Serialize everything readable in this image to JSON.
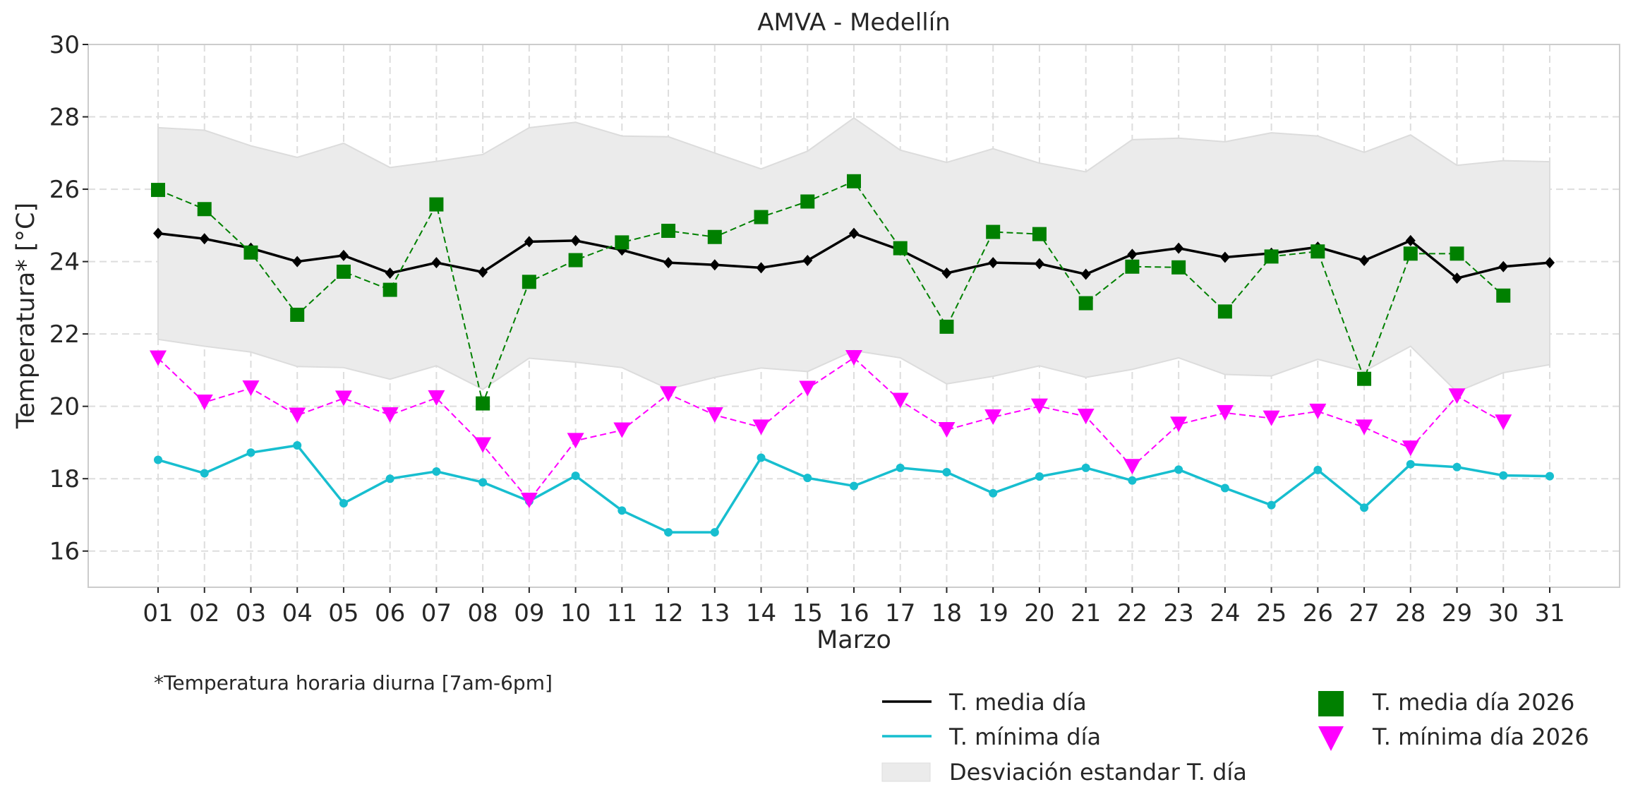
{
  "chart_data": {
    "type": "line",
    "title": "AMVA - Medellín",
    "xlabel": "Marzo",
    "ylabel": "Temperatura* [°C]",
    "ylim": [
      15,
      30
    ],
    "yticks": [
      16,
      18,
      20,
      22,
      24,
      26,
      28,
      30
    ],
    "grid": true,
    "categories": [
      "01",
      "02",
      "03",
      "04",
      "05",
      "06",
      "07",
      "08",
      "09",
      "10",
      "11",
      "12",
      "13",
      "14",
      "15",
      "16",
      "17",
      "18",
      "19",
      "20",
      "21",
      "22",
      "23",
      "24",
      "25",
      "26",
      "27",
      "28",
      "29",
      "30",
      "31"
    ],
    "series": [
      {
        "name": "T. media día",
        "color": "#000000",
        "style": "solid",
        "marker": "diamond",
        "values": [
          24.78,
          24.63,
          24.37,
          24.0,
          24.17,
          23.68,
          23.97,
          23.71,
          24.55,
          24.58,
          24.32,
          23.97,
          23.91,
          23.83,
          24.03,
          24.78,
          24.32,
          23.68,
          23.97,
          23.94,
          23.65,
          24.2,
          24.37,
          24.12,
          24.23,
          24.4,
          24.03,
          24.58,
          23.54,
          23.86,
          23.97
        ]
      },
      {
        "name": "T. mínima día",
        "color": "#17becf",
        "style": "solid",
        "marker": "circle",
        "values": [
          18.52,
          18.15,
          18.72,
          18.92,
          17.32,
          18.0,
          18.2,
          17.9,
          17.38,
          18.08,
          17.12,
          16.52,
          16.52,
          18.58,
          18.02,
          17.8,
          18.3,
          18.18,
          17.6,
          18.06,
          18.3,
          17.95,
          18.25,
          17.74,
          17.27,
          18.24,
          17.2,
          18.4,
          18.32,
          18.09,
          18.07
        ]
      },
      {
        "name": "T. media día 2026",
        "color": "#008000",
        "style": "dashed",
        "marker": "square",
        "values": [
          25.98,
          25.45,
          24.25,
          22.53,
          23.72,
          23.22,
          25.58,
          20.08,
          23.44,
          24.04,
          24.53,
          24.85,
          24.68,
          25.23,
          25.66,
          26.22,
          24.37,
          22.2,
          24.82,
          24.76,
          22.85,
          23.86,
          23.84,
          22.62,
          24.14,
          24.28,
          20.76,
          24.22,
          24.22,
          23.06,
          null
        ]
      },
      {
        "name": "T. mínima día 2026",
        "color": "#ff00ff",
        "style": "dashed",
        "marker": "triangle-down",
        "values": [
          21.33,
          20.11,
          20.5,
          19.75,
          20.22,
          19.76,
          20.23,
          18.93,
          17.4,
          19.05,
          19.34,
          20.34,
          19.76,
          19.42,
          20.49,
          21.34,
          20.16,
          19.35,
          19.7,
          20.0,
          19.72,
          18.33,
          19.5,
          19.82,
          19.67,
          19.86,
          19.42,
          18.84,
          20.28,
          19.56,
          null
        ]
      }
    ],
    "band": {
      "name": "Desviación estandar T. día",
      "color": "#ebebeb",
      "upper": [
        27.7,
        27.63,
        27.2,
        26.88,
        27.27,
        26.6,
        26.77,
        26.96,
        27.7,
        27.85,
        27.47,
        27.45,
        27.0,
        26.56,
        27.05,
        27.97,
        27.08,
        26.74,
        27.12,
        26.72,
        26.48,
        27.37,
        27.41,
        27.31,
        27.56,
        27.47,
        27.02,
        27.5,
        26.66,
        26.79,
        26.76
      ],
      "lower": [
        21.85,
        21.66,
        21.5,
        21.1,
        21.07,
        20.75,
        21.12,
        20.47,
        21.33,
        21.22,
        21.07,
        20.48,
        20.8,
        21.06,
        20.96,
        21.54,
        21.34,
        20.62,
        20.83,
        21.12,
        20.8,
        21.02,
        21.34,
        20.88,
        20.84,
        21.3,
        20.97,
        21.66,
        20.4,
        20.93,
        21.15
      ]
    },
    "legend": {
      "placement": "bottom-right",
      "entries": [
        "T. media día",
        "T. mínima día",
        "Desviación estandar T. día",
        "T. media día 2026",
        "T. mínima día 2026"
      ]
    },
    "footnote": "*Temperatura horaria diurna [7am-6pm]"
  }
}
